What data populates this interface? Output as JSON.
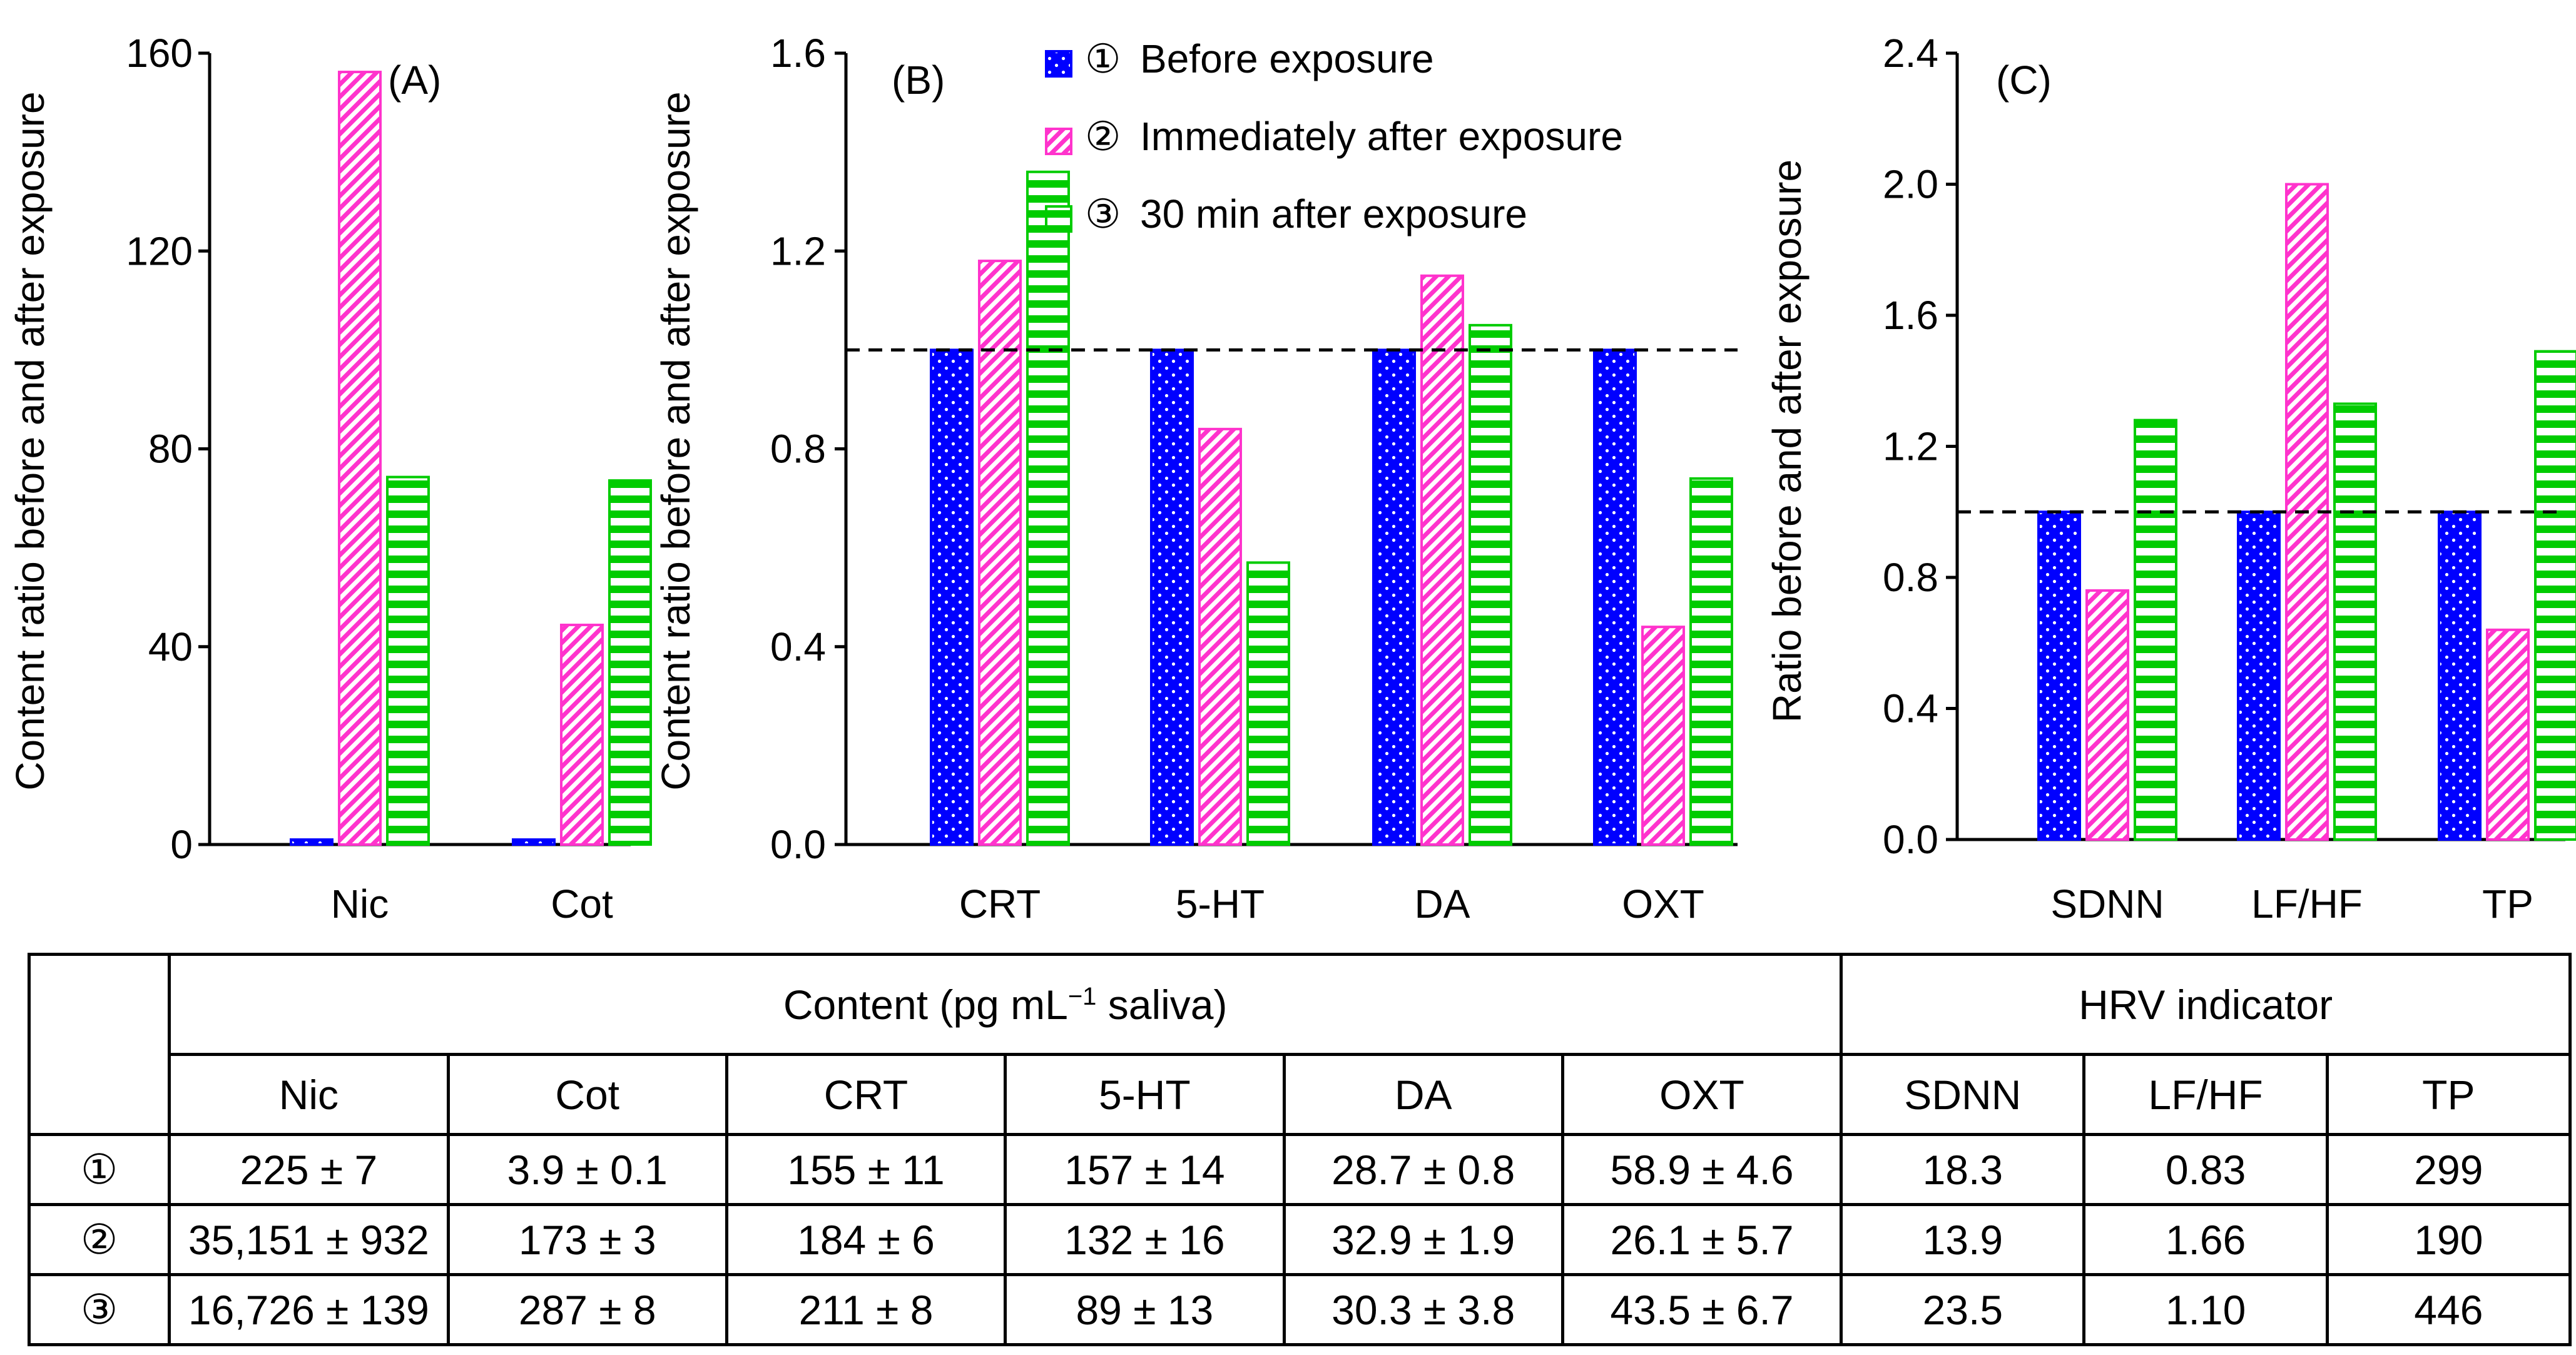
{
  "colors": {
    "series1": "#0000ff",
    "series2": "#ff33cc",
    "series3": "#00cc00",
    "axis": "#000000",
    "reference_line": "#000000"
  },
  "legend": {
    "items": [
      {
        "marker": "①",
        "label": "Before exposure"
      },
      {
        "marker": "②",
        "label": "Immediately after exposure"
      },
      {
        "marker": "③",
        "label": "30 min after exposure"
      }
    ]
  },
  "chart_data": [
    {
      "panel": "(A)",
      "type": "bar",
      "ylabel": "Content ratio before and after exposure",
      "ylim": [
        0,
        160
      ],
      "yticks": [
        "0",
        "40",
        "80",
        "120",
        "160"
      ],
      "categories": [
        "Nic",
        "Cot"
      ],
      "series": [
        {
          "name": "① Before exposure",
          "values": [
            1,
            1
          ]
        },
        {
          "name": "② Immediately after exposure",
          "values": [
            156.2,
            44.4
          ]
        },
        {
          "name": "③ 30 min after exposure",
          "values": [
            74.3,
            73.6
          ]
        }
      ]
    },
    {
      "panel": "(B)",
      "type": "bar",
      "ylabel": "Content ratio before and after exposure",
      "ylim": [
        0,
        1.6
      ],
      "yticks": [
        "0.0",
        "0.4",
        "0.8",
        "1.2",
        "1.6"
      ],
      "reference_line": 1.0,
      "categories": [
        "CRT",
        "5-HT",
        "DA",
        "OXT"
      ],
      "series": [
        {
          "name": "① Before exposure",
          "values": [
            1,
            1,
            1,
            1
          ]
        },
        {
          "name": "② Immediately after exposure",
          "values": [
            1.18,
            0.84,
            1.15,
            0.44
          ]
        },
        {
          "name": "③ 30 min after exposure",
          "values": [
            1.36,
            0.57,
            1.05,
            0.74
          ]
        }
      ]
    },
    {
      "panel": "(C)",
      "type": "bar",
      "ylabel": "Ratio before and after exposure",
      "ylim": [
        0,
        2.4
      ],
      "yticks": [
        "0.0",
        "0.4",
        "0.8",
        "1.2",
        "1.6",
        "2.0",
        "2.4"
      ],
      "reference_line": 1.0,
      "categories": [
        "SDNN",
        "LF/HF",
        "TP"
      ],
      "series": [
        {
          "name": "① Before exposure",
          "values": [
            1,
            1,
            1
          ]
        },
        {
          "name": "② Immediately after exposure",
          "values": [
            0.76,
            2.0,
            0.64
          ]
        },
        {
          "name": "③ 30 min after exposure",
          "values": [
            1.28,
            1.33,
            1.49
          ]
        }
      ]
    }
  ],
  "table": {
    "content_header": {
      "text": "Content (pg mL",
      "sup": "−1",
      "suffix": " saliva)"
    },
    "hrv_header": "HRV indicator",
    "columns": [
      "Nic",
      "Cot",
      "CRT",
      "5-HT",
      "DA",
      "OXT",
      "SDNN",
      "LF/HF",
      "TP"
    ],
    "rows": [
      {
        "label": "①",
        "cells": [
          "225 ± 7",
          "3.9 ± 0.1",
          "155 ± 11",
          "157 ± 14",
          "28.7 ± 0.8",
          "58.9 ± 4.6",
          "18.3",
          "0.83",
          "299"
        ]
      },
      {
        "label": "②",
        "cells": [
          "35,151 ± 932",
          "173 ± 3",
          "184 ± 6",
          "132 ± 16",
          "32.9 ± 1.9",
          "26.1 ± 5.7",
          "13.9",
          "1.66",
          "190"
        ]
      },
      {
        "label": "③",
        "cells": [
          "16,726 ± 139",
          "287 ± 8",
          "211 ± 8",
          "89 ± 13",
          "30.3 ± 3.8",
          "43.5 ± 6.7",
          "23.5",
          "1.10",
          "446"
        ]
      }
    ]
  }
}
